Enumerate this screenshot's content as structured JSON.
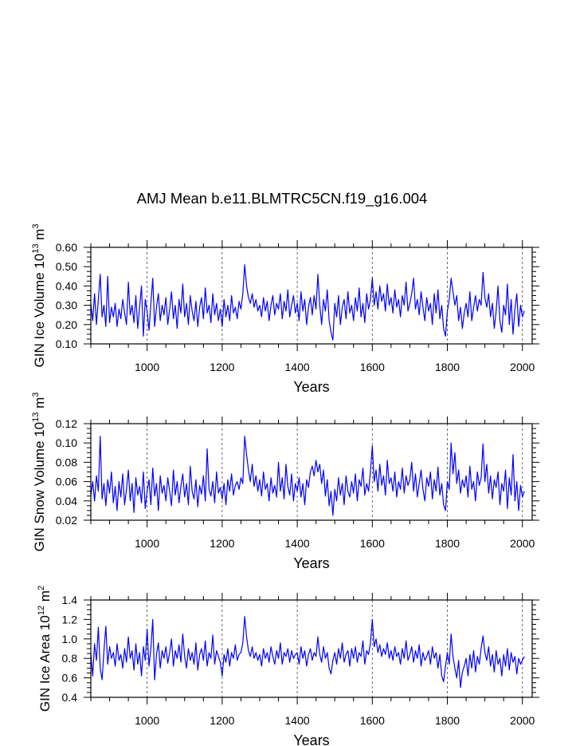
{
  "figure": {
    "title": "AMJ Mean b.e11.BLMTRC5CN.f19_g16.004"
  },
  "chart_data": [
    {
      "type": "line",
      "xlabel": "Years",
      "ylabel": {
        "text": "GIN Ice Volume 10",
        "sup1": "13",
        "mid": " m",
        "sup2": "3"
      },
      "xlim": [
        850,
        2026
      ],
      "ylim": [
        0.1,
        0.6
      ],
      "xticks": [
        1000,
        1200,
        1400,
        1600,
        1800,
        2000
      ],
      "xtick_labels": [
        "1000",
        "1200",
        "1400",
        "1600",
        "1800",
        "2000"
      ],
      "yticks": [
        0.1,
        0.2,
        0.3,
        0.4,
        0.5,
        0.6
      ],
      "ytick_labels": [
        "0.10",
        "0.20",
        "0.30",
        "0.40",
        "0.50",
        "0.60"
      ],
      "xgrid": true,
      "line_color": "#0000FF",
      "series": [
        {
          "x_start": 850,
          "x_step": 5,
          "values": [
            0.31,
            0.22,
            0.36,
            0.2,
            0.33,
            0.46,
            0.24,
            0.3,
            0.19,
            0.45,
            0.21,
            0.29,
            0.24,
            0.31,
            0.19,
            0.28,
            0.23,
            0.33,
            0.26,
            0.2,
            0.42,
            0.25,
            0.3,
            0.21,
            0.35,
            0.18,
            0.29,
            0.4,
            0.14,
            0.33,
            0.27,
            0.17,
            0.31,
            0.44,
            0.19,
            0.29,
            0.36,
            0.22,
            0.3,
            0.25,
            0.34,
            0.2,
            0.28,
            0.37,
            0.23,
            0.3,
            0.18,
            0.33,
            0.26,
            0.41,
            0.24,
            0.31,
            0.2,
            0.35,
            0.27,
            0.22,
            0.32,
            0.19,
            0.29,
            0.34,
            0.23,
            0.39,
            0.26,
            0.3,
            0.21,
            0.36,
            0.25,
            0.31,
            0.22,
            0.28,
            0.19,
            0.33,
            0.24,
            0.3,
            0.22,
            0.35,
            0.26,
            0.29,
            0.23,
            0.32,
            0.28,
            0.36,
            0.51,
            0.4,
            0.34,
            0.31,
            0.36,
            0.29,
            0.33,
            0.27,
            0.3,
            0.24,
            0.34,
            0.27,
            0.32,
            0.22,
            0.3,
            0.35,
            0.25,
            0.31,
            0.28,
            0.36,
            0.23,
            0.32,
            0.27,
            0.38,
            0.24,
            0.3,
            0.35,
            0.26,
            0.31,
            0.22,
            0.37,
            0.27,
            0.33,
            0.2,
            0.29,
            0.34,
            0.25,
            0.35,
            0.28,
            0.46,
            0.3,
            0.2,
            0.33,
            0.27,
            0.38,
            0.22,
            0.16,
            0.12,
            0.31,
            0.24,
            0.35,
            0.2,
            0.29,
            0.33,
            0.23,
            0.37,
            0.26,
            0.3,
            0.22,
            0.34,
            0.27,
            0.39,
            0.24,
            0.31,
            0.21,
            0.36,
            0.28,
            0.33,
            0.44,
            0.3,
            0.37,
            0.28,
            0.4,
            0.32,
            0.36,
            0.27,
            0.41,
            0.3,
            0.34,
            0.26,
            0.38,
            0.29,
            0.33,
            0.24,
            0.35,
            0.3,
            0.42,
            0.27,
            0.31,
            0.36,
            0.44,
            0.28,
            0.33,
            0.25,
            0.37,
            0.29,
            0.22,
            0.34,
            0.27,
            0.31,
            0.2,
            0.36,
            0.26,
            0.38,
            0.23,
            0.3,
            0.18,
            0.14,
            0.27,
            0.33,
            0.44,
            0.37,
            0.3,
            0.35,
            0.22,
            0.29,
            0.18,
            0.26,
            0.31,
            0.24,
            0.37,
            0.22,
            0.29,
            0.35,
            0.27,
            0.33,
            0.3,
            0.47,
            0.34,
            0.29,
            0.36,
            0.24,
            0.31,
            0.18,
            0.27,
            0.4,
            0.22,
            0.16,
            0.3,
            0.25,
            0.41,
            0.2,
            0.33,
            0.15,
            0.28,
            0.36,
            0.19,
            0.3,
            0.24,
            0.27
          ]
        }
      ]
    },
    {
      "type": "line",
      "xlabel": "Years",
      "ylabel": {
        "text": "GIN Snow Volume 10",
        "sup1": "13",
        "mid": " m",
        "sup2": "3"
      },
      "xlim": [
        850,
        2026
      ],
      "ylim": [
        0.02,
        0.12
      ],
      "xticks": [
        1000,
        1200,
        1400,
        1600,
        1800,
        2000
      ],
      "xtick_labels": [
        "1000",
        "1200",
        "1400",
        "1600",
        "1800",
        "2000"
      ],
      "yticks": [
        0.02,
        0.04,
        0.06,
        0.08,
        0.1,
        0.12
      ],
      "ytick_labels": [
        "0.02",
        "0.04",
        "0.06",
        "0.08",
        "0.10",
        "0.12"
      ],
      "xgrid": true,
      "line_color": "#0000FF",
      "series": [
        {
          "x_start": 850,
          "x_step": 5,
          "values": [
            0.045,
            0.06,
            0.04,
            0.066,
            0.05,
            0.107,
            0.042,
            0.058,
            0.035,
            0.062,
            0.048,
            0.07,
            0.038,
            0.055,
            0.03,
            0.06,
            0.044,
            0.068,
            0.036,
            0.052,
            0.072,
            0.04,
            0.058,
            0.028,
            0.064,
            0.046,
            0.055,
            0.038,
            0.07,
            0.032,
            0.05,
            0.062,
            0.036,
            0.074,
            0.045,
            0.058,
            0.03,
            0.066,
            0.048,
            0.056,
            0.04,
            0.064,
            0.05,
            0.035,
            0.072,
            0.046,
            0.06,
            0.038,
            0.055,
            0.068,
            0.044,
            0.058,
            0.036,
            0.076,
            0.05,
            0.042,
            0.062,
            0.034,
            0.056,
            0.047,
            0.066,
            0.04,
            0.094,
            0.052,
            0.045,
            0.06,
            0.038,
            0.07,
            0.048,
            0.054,
            0.042,
            0.058,
            0.036,
            0.062,
            0.05,
            0.068,
            0.046,
            0.056,
            0.06,
            0.052,
            0.064,
            0.058,
            0.107,
            0.088,
            0.072,
            0.06,
            0.078,
            0.055,
            0.066,
            0.05,
            0.062,
            0.045,
            0.07,
            0.052,
            0.058,
            0.04,
            0.064,
            0.048,
            0.056,
            0.044,
            0.08,
            0.05,
            0.064,
            0.042,
            0.078,
            0.055,
            0.046,
            0.068,
            0.04,
            0.058,
            0.05,
            0.064,
            0.044,
            0.058,
            0.036,
            0.062,
            0.054,
            0.07,
            0.076,
            0.066,
            0.082,
            0.07,
            0.078,
            0.058,
            0.072,
            0.045,
            0.062,
            0.035,
            0.05,
            0.025,
            0.052,
            0.04,
            0.064,
            0.046,
            0.058,
            0.036,
            0.066,
            0.05,
            0.044,
            0.06,
            0.048,
            0.068,
            0.04,
            0.062,
            0.055,
            0.074,
            0.046,
            0.058,
            0.05,
            0.07,
            0.097,
            0.06,
            0.072,
            0.05,
            0.078,
            0.056,
            0.066,
            0.046,
            0.082,
            0.058,
            0.064,
            0.05,
            0.07,
            0.044,
            0.06,
            0.052,
            0.074,
            0.048,
            0.066,
            0.056,
            0.062,
            0.08,
            0.05,
            0.068,
            0.044,
            0.058,
            0.072,
            0.052,
            0.04,
            0.064,
            0.055,
            0.07,
            0.042,
            0.062,
            0.05,
            0.075,
            0.046,
            0.058,
            0.036,
            0.03,
            0.06,
            0.052,
            0.1,
            0.068,
            0.09,
            0.058,
            0.072,
            0.048,
            0.062,
            0.054,
            0.066,
            0.044,
            0.076,
            0.052,
            0.06,
            0.04,
            0.07,
            0.056,
            0.064,
            0.099,
            0.06,
            0.078,
            0.048,
            0.066,
            0.042,
            0.062,
            0.054,
            0.07,
            0.036,
            0.058,
            0.05,
            0.072,
            0.032,
            0.064,
            0.046,
            0.088,
            0.04,
            0.06,
            0.03,
            0.056,
            0.044,
            0.05
          ]
        }
      ]
    },
    {
      "type": "line",
      "xlabel": "Years",
      "ylabel": {
        "text": "GIN Ice Area 10",
        "sup1": "12",
        "mid": " m",
        "sup2": "2"
      },
      "xlim": [
        850,
        2026
      ],
      "ylim": [
        0.4,
        1.4
      ],
      "xticks": [
        1000,
        1200,
        1400,
        1600,
        1800,
        2000
      ],
      "xtick_labels": [
        "1000",
        "1200",
        "1400",
        "1600",
        "1800",
        "2000"
      ],
      "yticks": [
        0.4,
        0.6,
        0.8,
        1.0,
        1.2,
        1.4
      ],
      "ytick_labels": [
        "0.4",
        "0.6",
        "0.8",
        "1.0",
        "1.2",
        "1.4"
      ],
      "xgrid": true,
      "line_color": "#0000FF",
      "series": [
        {
          "x_start": 850,
          "x_step": 5,
          "values": [
            0.85,
            0.62,
            0.95,
            0.78,
            1.12,
            0.7,
            0.58,
            0.88,
            1.13,
            0.74,
            0.92,
            0.8,
            0.86,
            0.72,
            0.95,
            0.78,
            0.84,
            0.7,
            0.9,
            0.76,
            1.02,
            0.8,
            0.88,
            0.68,
            0.95,
            0.74,
            0.86,
            0.62,
            0.92,
            0.78,
            1.1,
            0.72,
            0.9,
            1.2,
            0.58,
            0.84,
            0.96,
            0.7,
            0.88,
            0.8,
            0.92,
            0.75,
            0.86,
            1.0,
            0.72,
            0.88,
            0.8,
            0.94,
            0.76,
            1.05,
            0.82,
            0.7,
            0.9,
            0.78,
            0.86,
            0.74,
            0.96,
            0.68,
            0.84,
            0.9,
            0.78,
            0.98,
            0.72,
            0.86,
            0.8,
            1.04,
            0.74,
            0.88,
            0.82,
            0.76,
            0.62,
            0.84,
            0.76,
            0.9,
            0.72,
            0.86,
            0.8,
            0.94,
            0.78,
            0.84,
            0.86,
            0.96,
            1.23,
            1.02,
            0.88,
            0.82,
            0.92,
            0.8,
            0.86,
            0.78,
            0.84,
            0.72,
            0.9,
            0.8,
            0.86,
            0.76,
            0.92,
            0.82,
            0.74,
            0.88,
            0.8,
            0.96,
            0.74,
            0.86,
            0.82,
            0.9,
            0.76,
            0.88,
            0.8,
            0.84,
            0.86,
            0.74,
            0.92,
            0.8,
            0.88,
            0.72,
            0.84,
            0.9,
            0.78,
            0.86,
            0.82,
            1.02,
            0.84,
            0.76,
            0.92,
            0.8,
            0.86,
            0.7,
            0.64,
            0.78,
            0.86,
            0.74,
            0.9,
            0.8,
            0.96,
            0.76,
            0.84,
            0.88,
            0.72,
            0.9,
            0.8,
            0.92,
            0.76,
            0.86,
            0.82,
            0.98,
            0.74,
            0.88,
            0.84,
            0.96,
            1.2,
            0.92,
            1.0,
            0.86,
            0.94,
            0.82,
            0.9,
            0.84,
            0.96,
            0.8,
            0.88,
            0.78,
            0.92,
            0.82,
            0.86,
            0.74,
            0.9,
            0.8,
            0.98,
            0.78,
            0.84,
            0.92,
            0.76,
            0.88,
            0.8,
            0.94,
            0.72,
            0.86,
            0.78,
            0.82,
            0.88,
            0.74,
            0.92,
            0.8,
            0.86,
            0.7,
            0.84,
            0.62,
            0.56,
            0.72,
            0.86,
            0.74,
            1.05,
            0.82,
            0.7,
            0.6,
            0.78,
            0.5,
            0.66,
            0.72,
            0.8,
            0.62,
            0.84,
            0.7,
            0.88,
            0.66,
            0.82,
            0.74,
            0.9,
            1.03,
            0.86,
            0.78,
            0.92,
            0.72,
            0.84,
            0.66,
            0.88,
            0.74,
            0.8,
            0.62,
            0.84,
            0.72,
            0.9,
            0.68,
            0.86,
            0.76,
            0.82,
            0.64,
            0.8,
            0.74,
            0.78,
            0.82
          ]
        }
      ]
    }
  ]
}
